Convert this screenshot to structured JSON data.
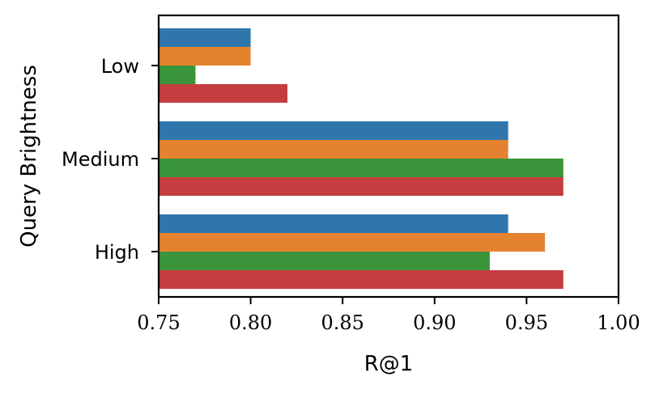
{
  "chart_data": {
    "type": "bar",
    "orientation": "horizontal",
    "categories": [
      "Low",
      "Medium",
      "High"
    ],
    "series": [
      {
        "color": "#2f76ad",
        "values": [
          0.8,
          0.94,
          0.94
        ]
      },
      {
        "color": "#e5822f",
        "values": [
          0.8,
          0.94,
          0.96
        ]
      },
      {
        "color": "#3a953a",
        "values": [
          0.77,
          0.97,
          0.93
        ]
      },
      {
        "color": "#c43d3f",
        "values": [
          0.82,
          0.97,
          0.97
        ]
      }
    ],
    "xlabel": "R@1",
    "ylabel": "Query Brightness",
    "xlim": [
      0.75,
      1.0
    ],
    "xticks": [
      "0.75",
      "0.80",
      "0.85",
      "0.90",
      "0.95",
      "1.00"
    ],
    "grid": false,
    "legend": "none"
  }
}
